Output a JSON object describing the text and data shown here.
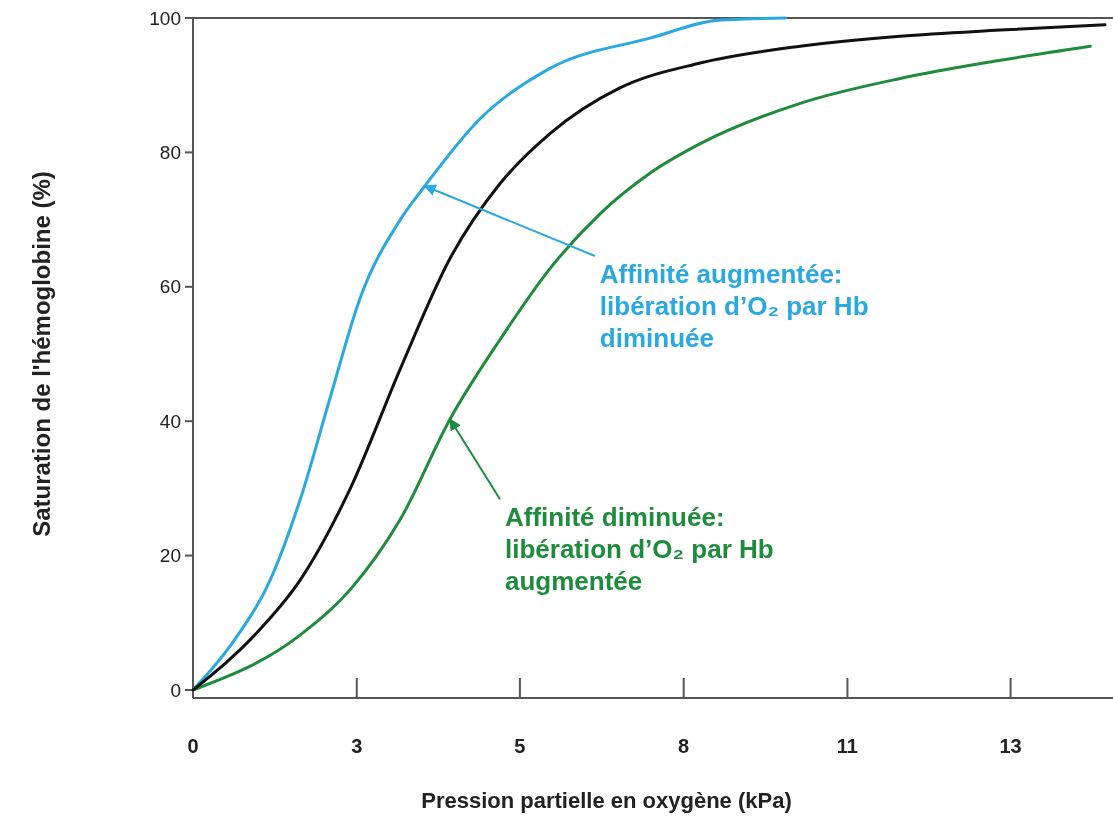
{
  "chart_data": {
    "type": "line",
    "xlabel": "Pression partielle en oxygène (kPa)",
    "ylabel": "Saturation de l'hémoglobine (%)",
    "xlim": [
      0,
      15
    ],
    "xticks": [
      {
        "value": 0,
        "label": "0"
      },
      {
        "value": 2.67,
        "label": "3"
      },
      {
        "value": 5.33,
        "label": "5"
      },
      {
        "value": 8,
        "label": "8"
      },
      {
        "value": 10.67,
        "label": "11"
      },
      {
        "value": 13.33,
        "label": "13"
      }
    ],
    "ylim": [
      0,
      100
    ],
    "yticks": [
      0,
      20,
      40,
      60,
      80,
      100
    ],
    "grid": false,
    "marker": "none",
    "line_style": "solid",
    "series": [
      {
        "color": "#2aa8e0",
        "x": [
          0,
          0.68,
          1.26,
          1.75,
          2.23,
          2.72,
          3.38,
          3.78,
          4.68,
          5.82,
          7.45,
          8.6,
          9.66
        ],
        "values": [
          0,
          7.5,
          16.4,
          28.4,
          43.3,
          58.2,
          70,
          75,
          85,
          92.5,
          97,
          99.7,
          100
        ]
      },
      {
        "color": "#1e8c3c",
        "x": [
          0,
          1.75,
          2.56,
          3.38,
          4.19,
          5.01,
          5.82,
          6.64,
          7.45,
          8.27,
          9.9,
          11.53,
          13.16,
          14.63
        ],
        "values": [
          0,
          8.2,
          14.9,
          25.4,
          40.3,
          52.2,
          62.7,
          70.9,
          76.9,
          81.3,
          87.3,
          91,
          93.7,
          95.8
        ]
      },
      {
        "color": "#111111",
        "x": [
          0,
          1.09,
          1.75,
          2.56,
          3.38,
          4.19,
          5.01,
          5.82,
          6.96,
          8.27,
          9.9,
          11.53,
          13.16,
          14.87
        ],
        "values": [
          0,
          9,
          16.4,
          29.9,
          47.8,
          64.2,
          75.4,
          82.8,
          89.6,
          93.3,
          95.8,
          97.3,
          98.2,
          99
        ]
      }
    ],
    "annotations": [
      {
        "text": "Affinité augmentée:\nlibération d’O₂ par Hb\ndiminuée",
        "x": 3.78,
        "y": 75
      },
      {
        "text": "Affinité diminuée:\nlibération d’O₂ par Hb\naugmentée",
        "x": 4.19,
        "y": 40.3
      }
    ]
  }
}
